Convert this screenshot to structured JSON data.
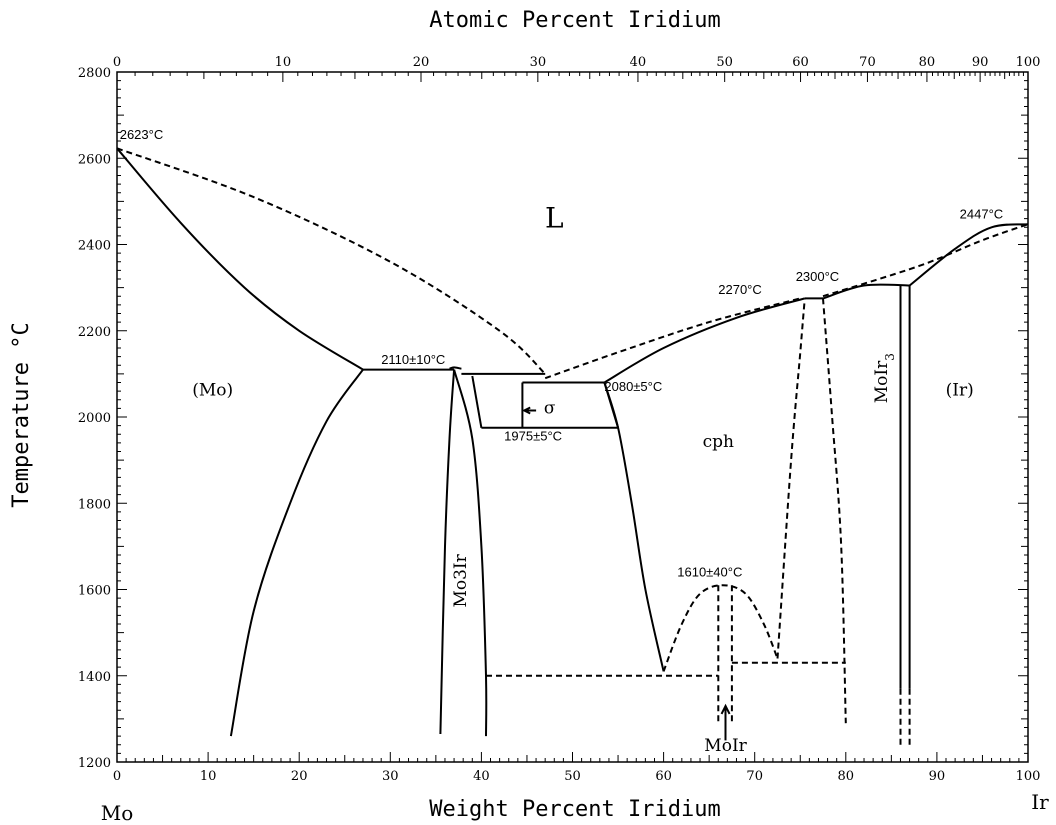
{
  "chart_data": {
    "type": "line",
    "title": "",
    "xlabel": "Weight Percent Iridium",
    "xlabel_top": "Atomic Percent Iridium",
    "ylabel": "Temperature °C",
    "xlim": [
      0,
      100
    ],
    "ylim": [
      1200,
      2800
    ],
    "x_ticks": [
      0,
      10,
      20,
      30,
      40,
      50,
      60,
      70,
      80,
      90,
      100
    ],
    "y_ticks": [
      1200,
      1400,
      1600,
      1800,
      2000,
      2200,
      2400,
      2600,
      2800
    ],
    "top_ticks_atomic_percent": [
      0,
      10,
      20,
      30,
      40,
      50,
      60,
      70,
      80,
      90,
      100
    ],
    "left_end_label": "Mo",
    "right_end_label": "Ir",
    "grid": false,
    "curves": [
      {
        "name": "liquidus-left",
        "style": "solid",
        "points": [
          [
            0,
            2623
          ],
          [
            7,
            2450
          ],
          [
            14,
            2300
          ],
          [
            20,
            2200
          ],
          [
            27,
            2110
          ]
        ]
      },
      {
        "name": "solidus-left-dashed",
        "style": "dashed",
        "points": [
          [
            0,
            2623
          ],
          [
            15,
            2510
          ],
          [
            30,
            2360
          ],
          [
            42,
            2200
          ],
          [
            47,
            2100
          ]
        ]
      },
      {
        "name": "mo-solvus",
        "style": "solid",
        "points": [
          [
            12.5,
            1260
          ],
          [
            15,
            1550
          ],
          [
            19,
            1800
          ],
          [
            23,
            1990
          ],
          [
            27,
            2110
          ]
        ]
      },
      {
        "name": "eutectic-2110",
        "style": "solid",
        "points": [
          [
            27,
            2110
          ],
          [
            37,
            2110
          ]
        ]
      },
      {
        "name": "mo3ir-left",
        "style": "solid",
        "points": [
          [
            35.5,
            1265
          ],
          [
            36,
            1700
          ],
          [
            36.5,
            1950
          ],
          [
            37,
            2110
          ]
        ]
      },
      {
        "name": "mo3ir-right",
        "style": "solid",
        "points": [
          [
            37,
            2110
          ],
          [
            39,
            1950
          ],
          [
            40,
            1700
          ],
          [
            40.5,
            1400
          ],
          [
            40.5,
            1260
          ]
        ]
      },
      {
        "name": "mo3ir-dome-peak",
        "style": "solid",
        "points": [
          [
            36.5,
            2112
          ],
          [
            37,
            2115
          ],
          [
            37.8,
            2112
          ]
        ]
      },
      {
        "name": "peritectic-upper",
        "style": "solid",
        "points": [
          [
            37.8,
            2100
          ],
          [
            47,
            2100
          ]
        ]
      },
      {
        "name": "sigma-left",
        "style": "solid",
        "points": [
          [
            39,
            2095
          ],
          [
            40,
            1975
          ]
        ]
      },
      {
        "name": "sigma-top",
        "style": "solid",
        "points": [
          [
            44.5,
            2080
          ],
          [
            53.5,
            2080
          ]
        ]
      },
      {
        "name": "sigma-left-edge",
        "style": "solid",
        "points": [
          [
            44.5,
            2080
          ],
          [
            44.5,
            1975
          ]
        ]
      },
      {
        "name": "sigma-right-edge",
        "style": "solid",
        "points": [
          [
            53.5,
            2080
          ],
          [
            55,
            1975
          ]
        ]
      },
      {
        "name": "sigma-bottom-1975",
        "style": "solid",
        "points": [
          [
            40,
            1975
          ],
          [
            55,
            1975
          ]
        ]
      },
      {
        "name": "sigma-pointer",
        "style": "solid",
        "points": [
          [
            44.7,
            2015
          ],
          [
            46,
            2015
          ]
        ]
      },
      {
        "name": "cph-left-boundary",
        "style": "solid",
        "points": [
          [
            53.5,
            2080
          ],
          [
            55,
            1975
          ],
          [
            56.5,
            1800
          ],
          [
            58,
            1600
          ],
          [
            60,
            1410
          ]
        ]
      },
      {
        "name": "liquidus-right-cph",
        "style": "solid",
        "points": [
          [
            53.5,
            2080
          ],
          [
            60,
            2160
          ],
          [
            68,
            2230
          ],
          [
            75.5,
            2275
          ]
        ]
      },
      {
        "name": "solidus-right-cph",
        "style": "dashed",
        "points": [
          [
            47,
            2090
          ],
          [
            55,
            2150
          ],
          [
            65,
            2220
          ],
          [
            75,
            2275
          ]
        ]
      },
      {
        "name": "peritectic-2270",
        "style": "solid",
        "points": [
          [
            75.5,
            2275
          ],
          [
            77.5,
            2275
          ]
        ]
      },
      {
        "name": "peritectic-2300",
        "style": "solid",
        "points": [
          [
            77.5,
            2275
          ],
          [
            82,
            2305
          ],
          [
            87,
            2305
          ]
        ]
      },
      {
        "name": "liquidus-right-ir",
        "style": "solid",
        "points": [
          [
            87,
            2305
          ],
          [
            92,
            2390
          ],
          [
            96,
            2440
          ],
          [
            100,
            2447
          ]
        ]
      },
      {
        "name": "solidus-right-ir",
        "style": "dashed",
        "points": [
          [
            77.5,
            2280
          ],
          [
            88,
            2350
          ],
          [
            95,
            2410
          ],
          [
            100,
            2447
          ]
        ]
      },
      {
        "name": "cph-ordering-left-dashed",
        "style": "dashed",
        "points": [
          [
            72.5,
            1440
          ],
          [
            74,
            1900
          ],
          [
            75,
            2150
          ],
          [
            75.5,
            2275
          ]
        ]
      },
      {
        "name": "cph-ordering-right-dashed",
        "style": "dashed",
        "points": [
          [
            77.5,
            2275
          ],
          [
            78.5,
            2000
          ],
          [
            79.5,
            1700
          ],
          [
            80,
            1290
          ]
        ]
      },
      {
        "name": "moir3-left",
        "style": "solid",
        "points": [
          [
            86,
            1370
          ],
          [
            86,
            2305
          ]
        ]
      },
      {
        "name": "moir3-right",
        "style": "solid",
        "points": [
          [
            87,
            1370
          ],
          [
            87,
            2305
          ]
        ]
      },
      {
        "name": "moir3-left-dashed",
        "style": "dashed",
        "points": [
          [
            86,
            1370
          ],
          [
            86,
            1240
          ]
        ]
      },
      {
        "name": "moir3-right-dashed",
        "style": "dashed",
        "points": [
          [
            87,
            1370
          ],
          [
            87,
            1240
          ]
        ]
      },
      {
        "name": "moir-dome",
        "style": "dashed",
        "points": [
          [
            60,
            1410
          ],
          [
            62,
            1520
          ],
          [
            64,
            1590
          ],
          [
            66.5,
            1610
          ],
          [
            69,
            1590
          ],
          [
            71,
            1520
          ],
          [
            72.5,
            1440
          ]
        ]
      },
      {
        "name": "moir-left-dashed",
        "style": "dashed",
        "points": [
          [
            66,
            1610
          ],
          [
            66,
            1290
          ]
        ]
      },
      {
        "name": "moir-right-dashed",
        "style": "dashed",
        "points": [
          [
            67.5,
            1610
          ],
          [
            67.5,
            1290
          ]
        ]
      },
      {
        "name": "eutectoid-1400",
        "style": "dashed",
        "points": [
          [
            40.5,
            1400
          ],
          [
            66,
            1400
          ]
        ]
      },
      {
        "name": "eutectoid-1430",
        "style": "dashed",
        "points": [
          [
            67.5,
            1430
          ],
          [
            80,
            1430
          ]
        ]
      },
      {
        "name": "moir-arrow-line",
        "style": "solid",
        "points": [
          [
            66.8,
            1330
          ],
          [
            66.8,
            1250
          ]
        ]
      }
    ],
    "annotations": [
      {
        "text": "2623°C",
        "x": 0.3,
        "y": 2645
      },
      {
        "text": "2447°C",
        "x": 92.5,
        "y": 2460
      },
      {
        "text": "2270°C",
        "x": 66,
        "y": 2285
      },
      {
        "text": "2300°C",
        "x": 74.5,
        "y": 2315
      },
      {
        "text": "2110±10°C",
        "x": 29,
        "y": 2123
      },
      {
        "text": "2080±5°C",
        "x": 53.5,
        "y": 2060
      },
      {
        "text": "1975±5°C",
        "x": 42.5,
        "y": 1945
      },
      {
        "text": "1610±40°C",
        "x": 61.5,
        "y": 1630
      }
    ],
    "phase_labels": [
      {
        "text": "L",
        "x": 48,
        "y": 2440,
        "size": "big"
      },
      {
        "text": "(Mo)",
        "x": 10.5,
        "y": 2050
      },
      {
        "text": "(Ir)",
        "x": 92.5,
        "y": 2050
      },
      {
        "text": "cph",
        "x": 66,
        "y": 1930
      },
      {
        "text": "σ",
        "x": 47.5,
        "y": 2008
      },
      {
        "text": "Mo3Ir",
        "x": 38.3,
        "y": 1620,
        "rotate": true
      },
      {
        "text": "MoIr3",
        "x": 84.5,
        "y": 2090,
        "rotate": true
      },
      {
        "text": "MoIr",
        "x": 66.8,
        "y": 1225
      }
    ]
  }
}
